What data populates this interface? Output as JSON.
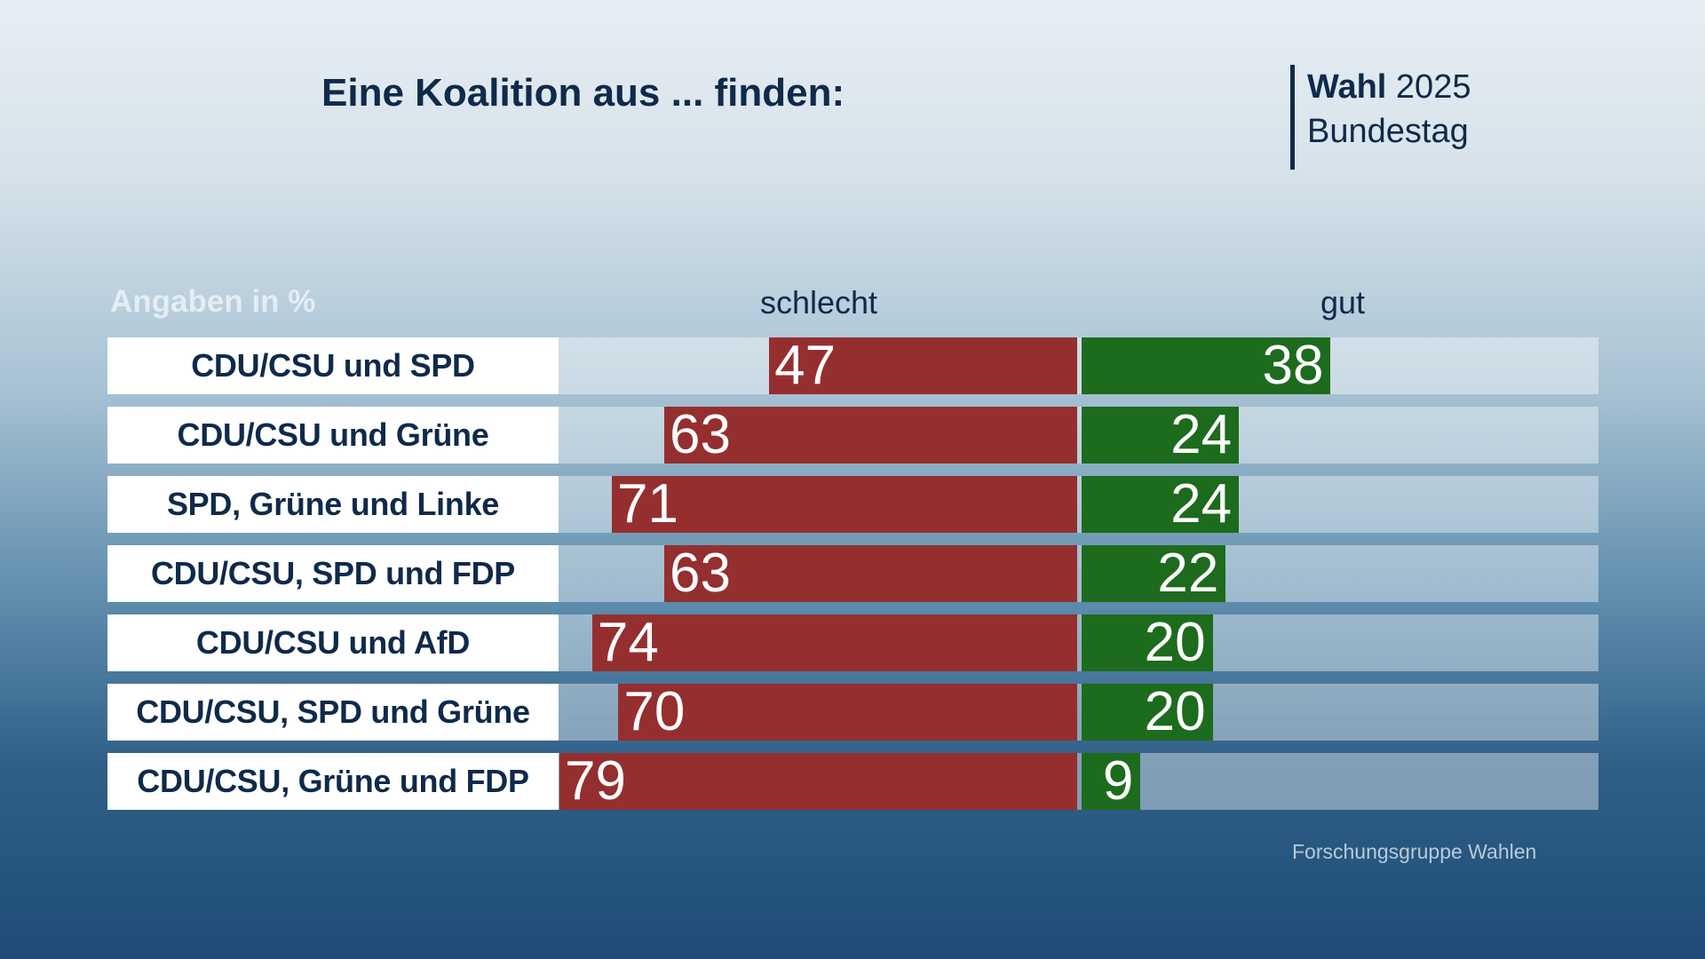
{
  "title": "Eine Koalition aus ... finden:",
  "brand": {
    "bold": "Wahl",
    "year": "2025",
    "sub": "Bundestag"
  },
  "source": "Forschungsgruppe Wahlen",
  "colors": {
    "schlecht": "#952f2f",
    "gut": "#1d6b1d",
    "text": "#0f2a4a"
  },
  "chart_data": {
    "type": "bar",
    "orientation": "horizontal diverging",
    "unit_label": "Angaben in %",
    "series": [
      {
        "name": "schlecht",
        "values": [
          47,
          63,
          71,
          63,
          74,
          70,
          79
        ]
      },
      {
        "name": "gut",
        "values": [
          38,
          24,
          24,
          22,
          20,
          20,
          9
        ]
      }
    ],
    "categories": [
      "CDU/CSU und SPD",
      "CDU/CSU und Grüne",
      "SPD, Grüne und Linke",
      "CDU/CSU, SPD und FDP",
      "CDU/CSU und AfD",
      "CDU/CSU, SPD und Grüne",
      "CDU/CSU, Grüne und FDP"
    ]
  }
}
